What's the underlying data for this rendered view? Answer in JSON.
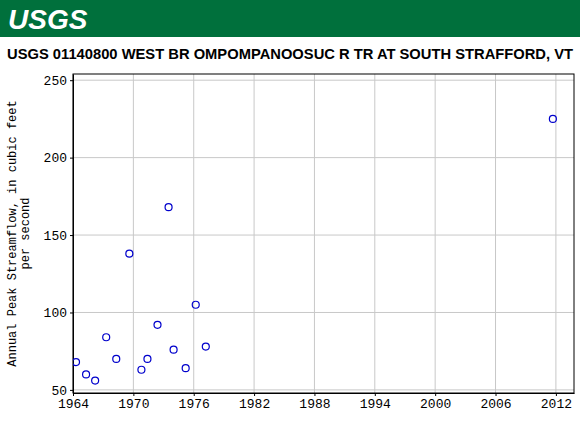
{
  "chart_data": {
    "type": "scatter",
    "logo": "USGS",
    "title": "USGS 01140800 WEST BR OMPOMPANOOSUC R TR AT SOUTH STRAFFORD, VT",
    "y_label": [
      "Annual Peak Streamflow, in cubic feet",
      "per second"
    ],
    "x": [
      1964.3,
      1965.3,
      1966.2,
      1967.3,
      1968.3,
      1969.6,
      1970.8,
      1971.4,
      1972.4,
      1973.5,
      1974.0,
      1975.2,
      1976.2,
      1977.2,
      2011.7
    ],
    "values": [
      68,
      60,
      56,
      84,
      70,
      138,
      63,
      70,
      92,
      168,
      76,
      64,
      105,
      78,
      225
    ],
    "color": "#0000cc",
    "marker": "open-circle",
    "xlim": [
      1964,
      2013.8
    ],
    "ylim": [
      48,
      254
    ],
    "xticks": [
      1964,
      1970,
      1976,
      1982,
      1988,
      1994,
      2000,
      2006,
      2012
    ],
    "yticks": [
      50,
      100,
      150,
      200,
      250
    ],
    "grid": true
  }
}
